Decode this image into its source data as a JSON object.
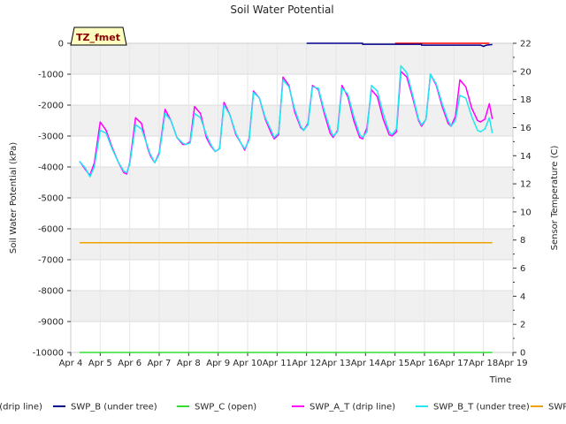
{
  "chart_data": {
    "type": "line",
    "title": "Soil Water Potential",
    "xlabel": "Time",
    "ylabel": "Soil Water Potential (kPa)",
    "y2label": "Sensor Temperature (C)",
    "badge": "TZ_fmet",
    "xlim": [
      4,
      19
    ],
    "ylim": [
      -10000,
      0
    ],
    "y2lim": [
      0,
      22
    ],
    "x_ticks": [
      {
        "value": 4,
        "label": "Apr 4"
      },
      {
        "value": 5,
        "label": "Apr 5"
      },
      {
        "value": 6,
        "label": "Apr 6"
      },
      {
        "value": 7,
        "label": "Apr 7"
      },
      {
        "value": 8,
        "label": "Apr 8"
      },
      {
        "value": 9,
        "label": "Apr 9"
      },
      {
        "value": 10,
        "label": "Apr 10"
      },
      {
        "value": 11,
        "label": "Apr 11"
      },
      {
        "value": 12,
        "label": "Apr 12"
      },
      {
        "value": 13,
        "label": "Apr 13"
      },
      {
        "value": 14,
        "label": "Apr 14"
      },
      {
        "value": 15,
        "label": "Apr 15"
      },
      {
        "value": 16,
        "label": "Apr 16"
      },
      {
        "value": 17,
        "label": "Apr 17"
      },
      {
        "value": 18,
        "label": "Apr 18"
      },
      {
        "value": 19,
        "label": "Apr 19"
      }
    ],
    "y_ticks": [
      0,
      -1000,
      -2000,
      -3000,
      -4000,
      -5000,
      -6000,
      -7000,
      -8000,
      -9000,
      -10000
    ],
    "y2_ticks": [
      0,
      2,
      4,
      6,
      8,
      10,
      12,
      14,
      16,
      18,
      20,
      22
    ],
    "legend": [
      {
        "label": "SWP_A (drip line)",
        "color": "#ff0000"
      },
      {
        "label": "SWP_B (under tree)",
        "color": "#00008b"
      },
      {
        "label": "SWP_C (open)",
        "color": "#33dd33"
      },
      {
        "label": "SWP_A_T (drip line)",
        "color": "#ff00ff"
      },
      {
        "label": "SWP_B_T (under tree)",
        "color": "#22e6f0"
      },
      {
        "label": "SWP_C_T (open)",
        "color": "#f0a000"
      }
    ],
    "series": [
      {
        "name": "SWP_A (drip line)",
        "axis": "left",
        "color": "#ff0000",
        "x": [
          15.0,
          15.4,
          15.8,
          16.2,
          16.6,
          17.0,
          17.4,
          17.8,
          18.2
        ],
        "y": [
          0,
          0,
          0,
          0,
          0,
          0,
          0,
          0,
          0
        ]
      },
      {
        "name": "SWP_B (under tree)",
        "axis": "left",
        "color": "#00008b",
        "x": [
          12.0,
          12.5,
          13.0,
          13.5,
          13.9,
          13.9,
          14.5,
          15.0,
          15.9,
          15.9,
          16.5,
          17.0,
          17.5,
          17.9,
          18.0,
          18.1,
          18.3
        ],
        "y": [
          0,
          0,
          0,
          0,
          0,
          -30,
          -30,
          -30,
          -30,
          -60,
          -60,
          -60,
          -60,
          -60,
          -100,
          -60,
          -40
        ]
      },
      {
        "name": "SWP_C (open)",
        "axis": "left",
        "color": "#33dd33",
        "x": [
          4.3,
          18.3
        ],
        "y": [
          -10000,
          -10000
        ]
      },
      {
        "name": "SWP_A_T (drip line)",
        "axis": "right",
        "color": "#ff00ff",
        "x": [
          4.3,
          4.5,
          4.65,
          4.8,
          5.0,
          5.2,
          5.4,
          5.6,
          5.8,
          5.9,
          6.0,
          6.2,
          6.4,
          6.6,
          6.7,
          6.85,
          7.0,
          7.2,
          7.4,
          7.6,
          7.8,
          7.9,
          8.05,
          8.2,
          8.4,
          8.6,
          8.75,
          8.9,
          9.05,
          9.2,
          9.4,
          9.6,
          9.8,
          9.9,
          10.05,
          10.2,
          10.4,
          10.6,
          10.8,
          10.9,
          11.05,
          11.2,
          11.4,
          11.6,
          11.8,
          11.9,
          12.05,
          12.2,
          12.4,
          12.6,
          12.8,
          12.9,
          13.05,
          13.2,
          13.4,
          13.6,
          13.8,
          13.9,
          14.05,
          14.2,
          14.4,
          14.6,
          14.8,
          14.9,
          15.05,
          15.2,
          15.4,
          15.6,
          15.8,
          15.9,
          16.05,
          16.2,
          16.4,
          16.6,
          16.8,
          16.9,
          17.05,
          17.2,
          17.4,
          17.6,
          17.8,
          17.9,
          18.05,
          18.2,
          18.3
        ],
        "y": [
          13.6,
          13.0,
          12.6,
          13.5,
          16.4,
          15.8,
          14.6,
          13.6,
          12.8,
          12.7,
          13.5,
          16.7,
          16.3,
          14.6,
          14.0,
          13.5,
          14.2,
          17.3,
          16.5,
          15.3,
          14.8,
          14.8,
          15.0,
          17.5,
          17.0,
          15.3,
          14.7,
          14.3,
          14.5,
          17.8,
          16.9,
          15.5,
          14.8,
          14.4,
          15.2,
          18.6,
          18.1,
          16.6,
          15.6,
          15.2,
          15.5,
          19.6,
          19.0,
          17.1,
          16.0,
          15.8,
          16.3,
          19.0,
          18.7,
          17.0,
          15.6,
          15.3,
          15.8,
          19.0,
          18.2,
          16.5,
          15.3,
          15.2,
          16.0,
          18.7,
          18.2,
          16.6,
          15.5,
          15.4,
          15.7,
          20.0,
          19.6,
          18.1,
          16.5,
          16.1,
          16.6,
          19.8,
          19.0,
          17.5,
          16.3,
          16.1,
          16.8,
          19.4,
          18.9,
          17.4,
          16.5,
          16.4,
          16.6,
          17.7,
          16.6
        ]
      },
      {
        "name": "SWP_B_T (under tree)",
        "axis": "right",
        "color": "#22e6f0",
        "x": [
          4.3,
          4.5,
          4.65,
          4.8,
          5.0,
          5.2,
          5.4,
          5.6,
          5.8,
          5.9,
          6.0,
          6.2,
          6.4,
          6.6,
          6.7,
          6.85,
          7.0,
          7.2,
          7.4,
          7.6,
          7.8,
          7.9,
          8.05,
          8.2,
          8.4,
          8.6,
          8.75,
          8.9,
          9.05,
          9.2,
          9.4,
          9.6,
          9.8,
          9.9,
          10.05,
          10.2,
          10.4,
          10.6,
          10.8,
          10.9,
          11.05,
          11.2,
          11.4,
          11.6,
          11.8,
          11.9,
          12.05,
          12.2,
          12.4,
          12.6,
          12.8,
          12.9,
          13.05,
          13.2,
          13.4,
          13.6,
          13.8,
          13.9,
          14.05,
          14.2,
          14.4,
          14.6,
          14.8,
          14.9,
          15.05,
          15.2,
          15.4,
          15.6,
          15.8,
          15.9,
          16.05,
          16.2,
          16.4,
          16.6,
          16.8,
          16.9,
          17.05,
          17.2,
          17.4,
          17.6,
          17.8,
          17.9,
          18.05,
          18.2,
          18.3
        ],
        "y": [
          13.6,
          13.1,
          12.5,
          13.2,
          15.8,
          15.6,
          14.5,
          13.6,
          12.9,
          12.8,
          13.4,
          16.2,
          15.9,
          14.7,
          14.1,
          13.5,
          14.1,
          17.0,
          16.5,
          15.3,
          14.9,
          14.8,
          14.9,
          17.0,
          16.7,
          15.5,
          14.8,
          14.3,
          14.5,
          17.6,
          16.9,
          15.6,
          14.8,
          14.5,
          15.1,
          18.5,
          18.1,
          16.7,
          15.8,
          15.3,
          15.6,
          19.4,
          18.9,
          17.3,
          16.1,
          15.8,
          16.2,
          18.9,
          18.8,
          17.2,
          15.9,
          15.4,
          15.7,
          18.8,
          18.4,
          16.8,
          15.5,
          15.3,
          15.7,
          19.0,
          18.6,
          17.0,
          15.7,
          15.5,
          15.9,
          20.4,
          19.9,
          18.3,
          16.6,
          16.2,
          16.6,
          19.8,
          19.1,
          17.7,
          16.5,
          16.1,
          16.5,
          18.3,
          18.1,
          16.8,
          15.8,
          15.7,
          15.9,
          16.7,
          15.6
        ]
      },
      {
        "name": "SWP_C_T (open)",
        "axis": "left",
        "color": "#f0a000",
        "x": [
          4.3,
          18.3
        ],
        "y": [
          -6450,
          -6450
        ]
      }
    ]
  }
}
